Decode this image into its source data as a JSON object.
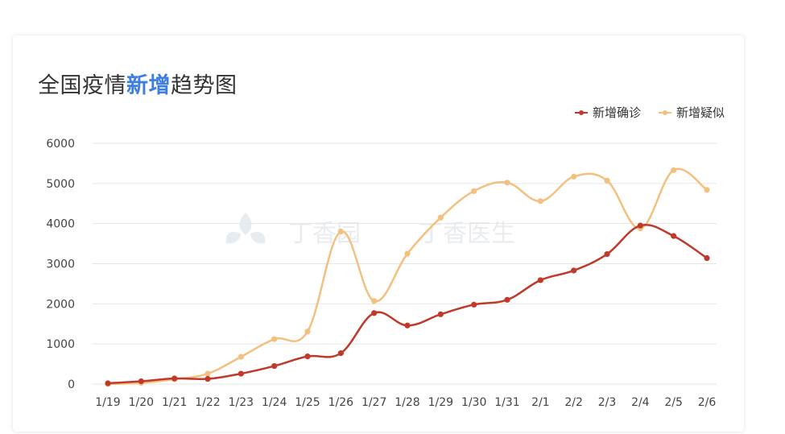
{
  "title": {
    "prefix": "全国疫情",
    "highlight": "新增",
    "suffix": "趋势图"
  },
  "watermark": {
    "left_text": "丁香园",
    "right_text": "丁香医生"
  },
  "colors": {
    "confirmed": "#c0392b",
    "suspected": "#f3c07f",
    "highlight": "#3d7ee0",
    "grid": "#e6e6e6"
  },
  "chart_data": {
    "type": "line",
    "title": "全国疫情新增趋势图",
    "xlabel": "",
    "ylabel": "",
    "ylim": [
      0,
      6000
    ],
    "yticks": [
      0,
      1000,
      2000,
      3000,
      4000,
      5000,
      6000
    ],
    "grid": true,
    "legend_position": "top-right",
    "categories": [
      "1/19",
      "1/20",
      "1/21",
      "1/22",
      "1/23",
      "1/24",
      "1/25",
      "1/26",
      "1/27",
      "1/28",
      "1/29",
      "1/30",
      "1/31",
      "2/1",
      "2/2",
      "2/3",
      "2/4",
      "2/5",
      "2/6"
    ],
    "series": [
      {
        "name": "新增确诊",
        "color": "#c0392b",
        "values": [
          20,
          70,
          140,
          130,
          260,
          450,
          690,
          770,
          1770,
          1460,
          1740,
          1980,
          2100,
          2590,
          2830,
          3240,
          3950,
          3690,
          3140
        ]
      },
      {
        "name": "新增疑似",
        "color": "#f3c07f",
        "values": [
          0,
          30,
          120,
          260,
          680,
          1120,
          1310,
          3800,
          2070,
          3250,
          4150,
          4810,
          5020,
          4560,
          5170,
          5070,
          3880,
          5330,
          4840
        ]
      }
    ]
  }
}
